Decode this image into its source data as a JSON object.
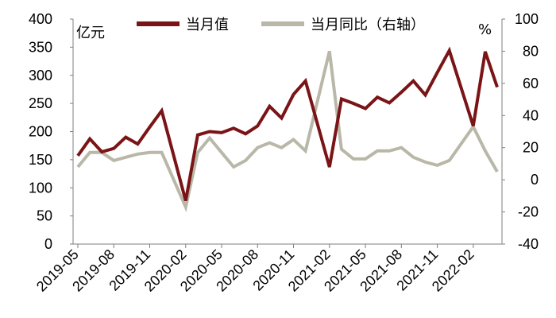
{
  "chart_data": {
    "type": "line",
    "left_unit": "亿元",
    "right_unit": "%",
    "legend": {
      "series1_label": "当月值",
      "series2_label": "当月同比（右轴）"
    },
    "colors": {
      "series1": "#7a1416",
      "series2": "#b9b8a8"
    },
    "yleft": {
      "min": 0,
      "max": 400,
      "ticks": [
        "0",
        "50",
        "100",
        "150",
        "200",
        "250",
        "300",
        "350",
        "400"
      ]
    },
    "yright": {
      "min": -40,
      "max": 100,
      "ticks": [
        "-40",
        "-20",
        "0",
        "20",
        "40",
        "60",
        "80",
        "100"
      ]
    },
    "x_tick_labels": [
      {
        "index": 0,
        "label": "2019-05"
      },
      {
        "index": 3,
        "label": "2019-08"
      },
      {
        "index": 6,
        "label": "2019-11"
      },
      {
        "index": 9,
        "label": "2020-02"
      },
      {
        "index": 12,
        "label": "2020-05"
      },
      {
        "index": 15,
        "label": "2020-08"
      },
      {
        "index": 18,
        "label": "2020-11"
      },
      {
        "index": 21,
        "label": "2021-02"
      },
      {
        "index": 24,
        "label": "2021-05"
      },
      {
        "index": 27,
        "label": "2021-08"
      },
      {
        "index": 30,
        "label": "2021-11"
      },
      {
        "index": 33,
        "label": "2022-02"
      }
    ],
    "categories": [
      "2019-05",
      "2019-06",
      "2019-07",
      "2019-08",
      "2019-09",
      "2019-10",
      "2019-11",
      "2019-12",
      "2020-01",
      "2020-02",
      "2020-03",
      "2020-04",
      "2020-05",
      "2020-06",
      "2020-07",
      "2020-08",
      "2020-09",
      "2020-10",
      "2020-11",
      "2020-12",
      "2021-01",
      "2021-02",
      "2021-03",
      "2021-04",
      "2021-05",
      "2021-06",
      "2021-07",
      "2021-08",
      "2021-09",
      "2021-10",
      "2021-11",
      "2021-12",
      "2022-01",
      "2022-02",
      "2022-03",
      "2022-04"
    ],
    "series": [
      {
        "axis": "left",
        "values": [
          157,
          187,
          164,
          170,
          190,
          178,
          208,
          237,
          null,
          77,
          194,
          200,
          198,
          206,
          196,
          210,
          245,
          224,
          266,
          290,
          null,
          137,
          258,
          250,
          241,
          261,
          251,
          270,
          290,
          265,
          305,
          344,
          null,
          210,
          342,
          279
        ]
      },
      {
        "axis": "right",
        "values": [
          8,
          17,
          17,
          12,
          14,
          16,
          17,
          17,
          null,
          -17,
          17,
          26,
          17,
          8,
          12,
          20,
          23,
          20,
          25,
          18,
          null,
          80,
          19,
          13,
          13,
          18,
          18,
          20,
          14,
          11,
          9,
          12,
          null,
          33,
          18,
          5
        ]
      }
    ]
  }
}
